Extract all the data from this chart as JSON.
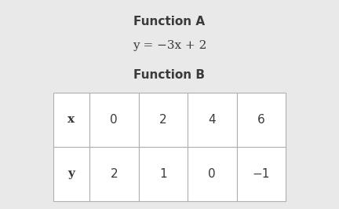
{
  "background_color": "#e9e9e9",
  "function_a_title": "Function A",
  "function_a_equation": "y = −3x + 2",
  "function_b_title": "Function B",
  "table_x_label": "x",
  "table_y_label": "y",
  "table_x_values": [
    "0",
    "2",
    "4",
    "6"
  ],
  "table_y_values": [
    "2",
    "1",
    "0",
    "−1"
  ],
  "title_fontsize": 11,
  "equation_fontsize": 11,
  "table_fontsize": 11,
  "border_color": "#b0b0b0",
  "cell_bg": "#ffffff",
  "text_color": "#3a3a3a"
}
